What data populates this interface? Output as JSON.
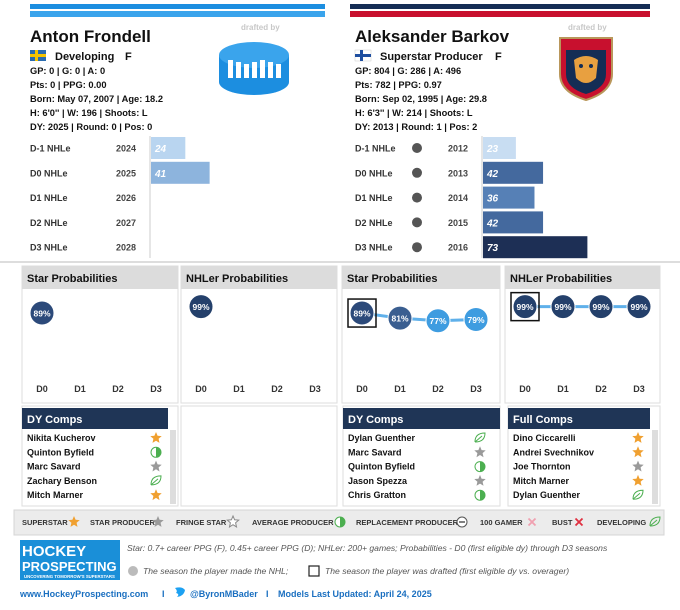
{
  "players": [
    {
      "name": "Anton Frondell",
      "status": "Developing",
      "position": "F",
      "stats": [
        "GP: 0 | G: 0 | A: 0",
        "Pts: 0 | PPG: 0.00",
        "Born: May 07, 2007 | Age: 18.2",
        "H: 6'0'' | W: 196 | Shoots: L",
        "DY: 2025 | Round: 0 | Pos: 0"
      ],
      "drafted_by": "drafted by",
      "nhle": {
        "type": "bar",
        "labels": [
          "D-1 NHLe",
          "D0 NHLe",
          "D1 NHLe",
          "D2 NHLe",
          "D3 NHLe"
        ],
        "years": [
          "2024",
          "2025",
          "2026",
          "2027",
          "2028"
        ],
        "values": [
          24,
          41,
          null,
          null,
          null
        ],
        "colors": [
          "#b9d5f0",
          "#8db4dd",
          null,
          null,
          null
        ],
        "xlim": [
          0,
          100
        ]
      },
      "star": {
        "type": "dot",
        "title": "Star Probabilities",
        "categories": [
          "D0",
          "D1",
          "D2",
          "D3"
        ],
        "values": [
          89,
          null,
          null,
          null
        ],
        "value_labels": [
          "89%",
          null,
          null,
          null
        ],
        "colors": [
          "#2c4a7a",
          null,
          null,
          null
        ],
        "ylim": [
          0,
          100
        ]
      },
      "nhler": {
        "type": "dot",
        "title": "NHLer Probabilities",
        "categories": [
          "D0",
          "D1",
          "D2",
          "D3"
        ],
        "values": [
          99,
          null,
          null,
          null
        ],
        "value_labels": [
          "99%",
          null,
          null,
          null
        ],
        "colors": [
          "#24406b",
          null,
          null,
          null
        ],
        "ylim": [
          0,
          100
        ]
      },
      "dy_comps": {
        "title": "DY Comps",
        "names": [
          "Nikita Kucherov",
          "Quinton Byfield",
          "Marc Savard",
          "Zachary Benson",
          "Mitch Marner"
        ]
      }
    },
    {
      "name": "Aleksander Barkov",
      "status": "Superstar Producer",
      "position": "F",
      "stats": [
        "GP: 804 | G: 286 | A: 496",
        "Pts: 782 | PPG: 0.97",
        "Born: Sep 02, 1995 | Age: 29.8",
        "H: 6'3'' | W: 214 | Shoots: L",
        "DY: 2013 | Round: 1 | Pos: 2"
      ],
      "drafted_by": "drafted by",
      "nhle": {
        "type": "bar",
        "labels": [
          "D-1 NHLe",
          "D0 NHLe",
          "D1 NHLe",
          "D2 NHLe",
          "D3 NHLe"
        ],
        "years": [
          "2012",
          "2013",
          "2014",
          "2015",
          "2016"
        ],
        "values": [
          23,
          42,
          36,
          42,
          73
        ],
        "colors": [
          "#c8ddf2",
          "#44699e",
          "#5680b6",
          "#44699e",
          "#1d2f55"
        ],
        "xlim": [
          0,
          100
        ]
      },
      "star": {
        "type": "dot",
        "title": "Star Probabilities",
        "categories": [
          "D0",
          "D1",
          "D2",
          "D3"
        ],
        "values": [
          89,
          81,
          77,
          79
        ],
        "value_labels": [
          "89%",
          "81%",
          "77%",
          "79%"
        ],
        "colors": [
          "#2c4a7a",
          "#3a5e90",
          "#3e9ce0",
          "#3e9ce0"
        ],
        "ylim": [
          0,
          100
        ],
        "boxed": 0
      },
      "nhler": {
        "type": "dot",
        "title": "NHLer Probabilities",
        "categories": [
          "D0",
          "D1",
          "D2",
          "D3"
        ],
        "values": [
          99,
          99,
          99,
          99
        ],
        "value_labels": [
          "99%",
          "99%",
          "99%",
          "99%"
        ],
        "colors": [
          "#24406b",
          "#24406b",
          "#24406b",
          "#24406b"
        ],
        "ylim": [
          0,
          100
        ],
        "boxed": 0
      },
      "dy_comps": {
        "title": "DY Comps",
        "names": [
          "Dylan Guenther",
          "Marc Savard",
          "Quinton Byfield",
          "Jason Spezza",
          "Chris Gratton"
        ]
      },
      "full_comps": {
        "title": "Full Comps",
        "names": [
          "Dino Ciccarelli",
          "Andrei Svechnikov",
          "Joe Thornton",
          "Mitch Marner",
          "Dylan Guenther"
        ]
      }
    }
  ],
  "legend": [
    "SUPERSTAR",
    "STAR PRODUCER",
    "FRINGE STAR",
    "AVERAGE PRODUCER",
    "REPLACEMENT PRODUCER",
    "100 GAMER",
    "BUST",
    "DEVELOPING"
  ],
  "footer": {
    "brand_line1": "HOCKEY",
    "brand_line2": "PROSPECTING",
    "tagline": "UNCOVERING TOMORROW'S SUPERSTARS",
    "note": "Star: 0.7+ career PPG (F), 0.45+ career PPG (D); NHLer: 200+ games; Probabilities - D0 (first eligible dy) through D3 seasons",
    "key_made": "The season the player made the NHL;",
    "key_drafted": "The season the player was drafted (first eligible dy vs. overager)",
    "website": "www.HockeyProspecting.com",
    "separator": "I",
    "twitter": "@ByronMBader",
    "updated": "Models Last Updated: April 24, 2025"
  }
}
